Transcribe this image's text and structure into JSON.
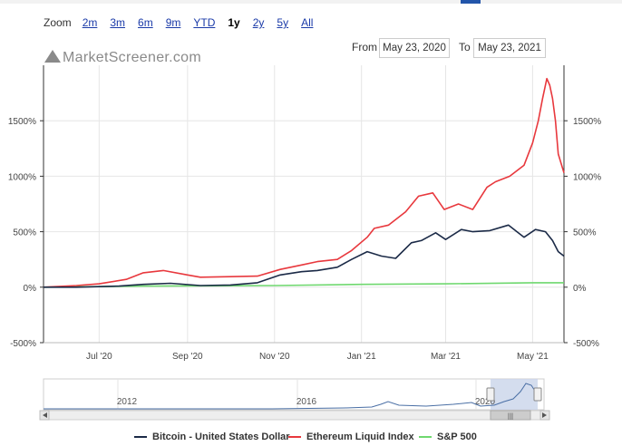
{
  "zoom": {
    "label": "Zoom",
    "buttons": [
      "2m",
      "3m",
      "6m",
      "9m",
      "YTD",
      "1y",
      "2y",
      "5y",
      "All"
    ],
    "active": "1y"
  },
  "range": {
    "from_label": "From",
    "from_value": "May 23, 2020",
    "to_label": "To",
    "to_value": "May 23, 2021"
  },
  "logo_text": "MarketScreener.com",
  "navigator": {
    "year_labels": [
      "2012",
      "2016",
      "2020"
    ],
    "scroll_grip": "|||"
  },
  "colors": {
    "bitcoin": "#1b2a47",
    "ethereum": "#e8383d",
    "sp500": "#6fd86f",
    "grid": "#e6e6e6",
    "navigator_mask": "#c9d4ea"
  },
  "chart_data": {
    "type": "line",
    "title": "",
    "x_tick_labels": [
      "Jul '20",
      "Sep '20",
      "Nov '20",
      "Jan '21",
      "Mar '21",
      "May '21"
    ],
    "x_range": [
      "2020-05-23",
      "2021-05-23"
    ],
    "y_tick_labels": [
      "-500%",
      "0%",
      "500%",
      "1000%",
      "1500%"
    ],
    "y_ticks": [
      -500,
      0,
      500,
      1000,
      1500
    ],
    "ylim": [
      -500,
      2000
    ],
    "y_unit": "%",
    "grid": true,
    "legend_position": "bottom",
    "series": [
      {
        "name": "Bitcoin - United States Dollar",
        "color": "#1b2a47",
        "x": [
          "2020-05-23",
          "2020-06-15",
          "2020-07-15",
          "2020-08-01",
          "2020-08-20",
          "2020-09-10",
          "2020-10-01",
          "2020-10-20",
          "2020-11-05",
          "2020-11-20",
          "2020-12-01",
          "2020-12-15",
          "2020-12-25",
          "2021-01-05",
          "2021-01-15",
          "2021-01-25",
          "2021-02-05",
          "2021-02-12",
          "2021-02-22",
          "2021-03-01",
          "2021-03-12",
          "2021-03-20",
          "2021-04-01",
          "2021-04-14",
          "2021-04-20",
          "2021-04-25",
          "2021-05-03",
          "2021-05-10",
          "2021-05-15",
          "2021-05-19",
          "2021-05-23"
        ],
        "y": [
          0,
          0,
          10,
          25,
          35,
          15,
          20,
          40,
          110,
          140,
          150,
          180,
          250,
          320,
          280,
          260,
          400,
          420,
          490,
          430,
          520,
          500,
          510,
          560,
          500,
          450,
          520,
          500,
          420,
          320,
          280
        ]
      },
      {
        "name": "Ethereum Liquid Index",
        "color": "#e8383d",
        "x": [
          "2020-05-23",
          "2020-06-15",
          "2020-07-01",
          "2020-07-20",
          "2020-08-01",
          "2020-08-15",
          "2020-09-01",
          "2020-09-10",
          "2020-10-01",
          "2020-10-20",
          "2020-11-05",
          "2020-11-20",
          "2020-12-01",
          "2020-12-15",
          "2020-12-25",
          "2021-01-05",
          "2021-01-10",
          "2021-01-20",
          "2021-02-01",
          "2021-02-10",
          "2021-02-20",
          "2021-02-28",
          "2021-03-10",
          "2021-03-20",
          "2021-03-30",
          "2021-04-05",
          "2021-04-15",
          "2021-04-25",
          "2021-05-01",
          "2021-05-05",
          "2021-05-08",
          "2021-05-11",
          "2021-05-13",
          "2021-05-15",
          "2021-05-17",
          "2021-05-19",
          "2021-05-23"
        ],
        "y": [
          0,
          15,
          30,
          70,
          130,
          150,
          110,
          90,
          95,
          100,
          160,
          200,
          230,
          250,
          330,
          450,
          530,
          560,
          680,
          820,
          850,
          700,
          750,
          700,
          900,
          950,
          1000,
          1100,
          1300,
          1500,
          1700,
          1880,
          1820,
          1700,
          1500,
          1200,
          1030
        ]
      },
      {
        "name": "S&P 500",
        "color": "#6fd86f",
        "x": [
          "2020-05-23",
          "2020-08-01",
          "2020-11-01",
          "2021-01-01",
          "2021-03-01",
          "2021-05-01",
          "2021-05-23"
        ],
        "y": [
          0,
          10,
          15,
          25,
          30,
          40,
          40
        ]
      }
    ]
  }
}
